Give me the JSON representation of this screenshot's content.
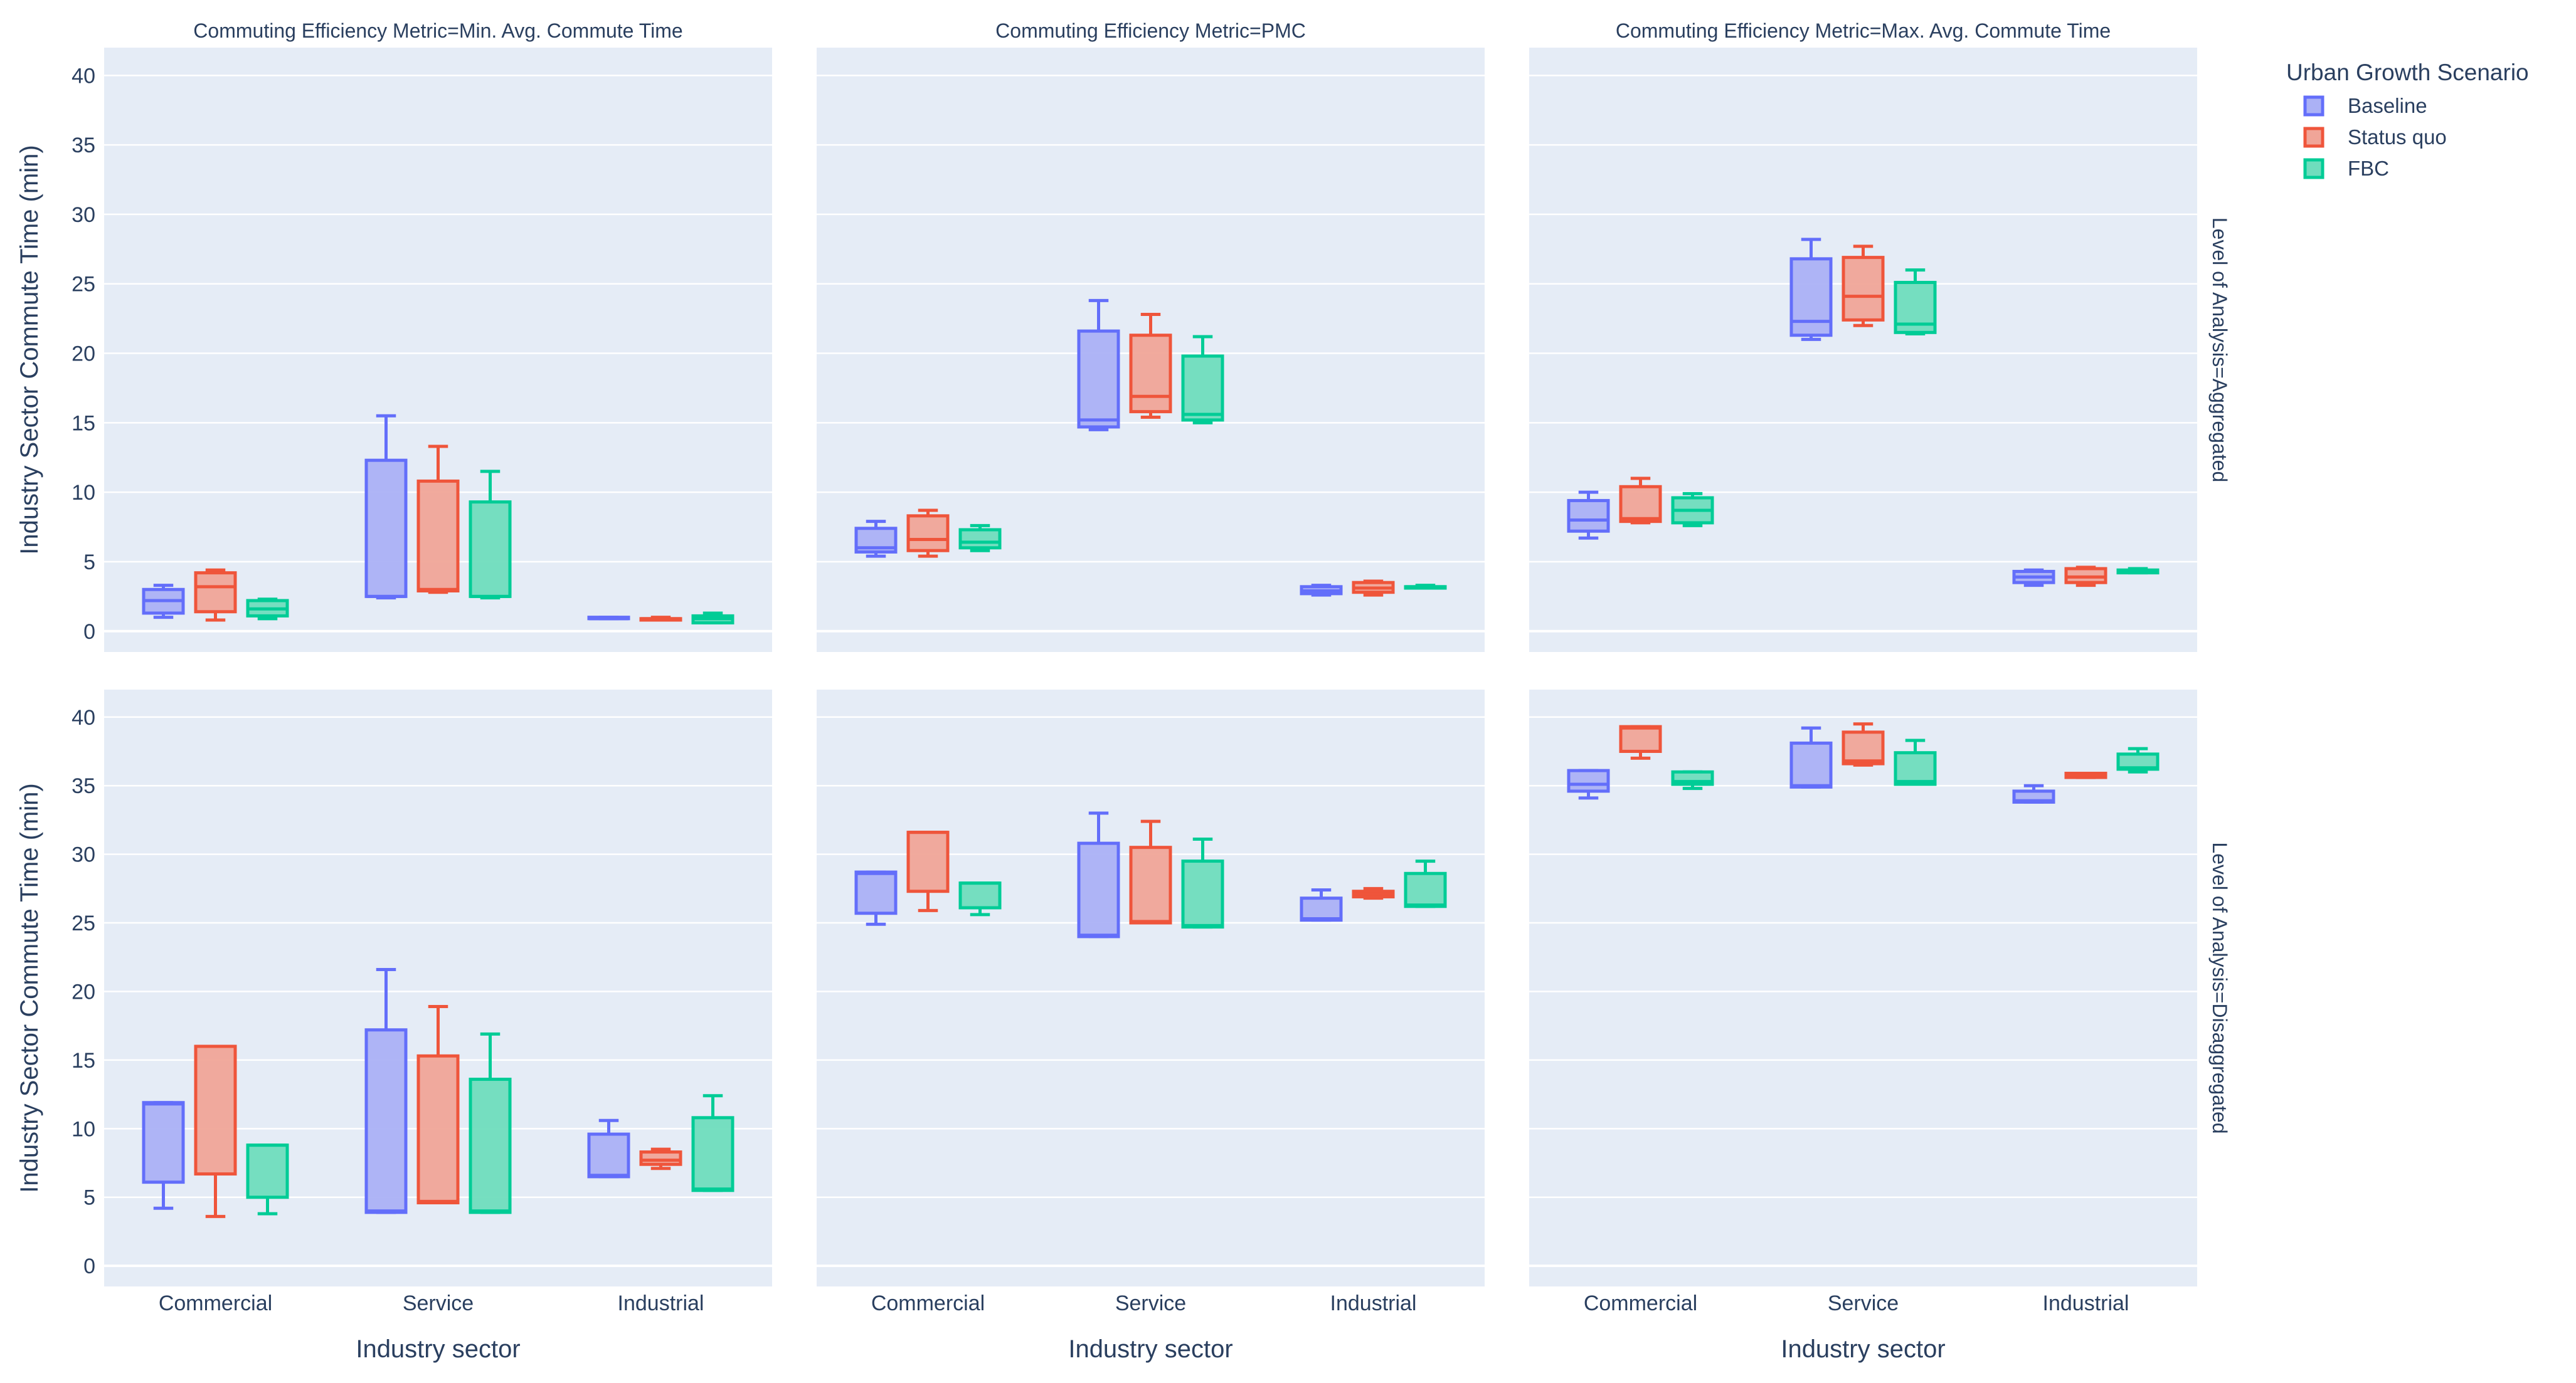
{
  "chart_data": {
    "type": "box",
    "legend_title": "Urban Growth Scenario",
    "y_axis_title": "Industry Sector Commute Time (min)",
    "x_axis_title": "Industry sector",
    "categories": [
      "Commercial",
      "Service",
      "Industrial"
    ],
    "y_ticks": [
      0,
      5,
      10,
      15,
      20,
      25,
      30,
      35,
      40
    ],
    "ylim": [
      -1.5,
      42
    ],
    "series": [
      {
        "name": "Baseline",
        "color": "#636efa",
        "fill": "#abb1f5"
      },
      {
        "name": "Status quo",
        "color": "#ef553b",
        "fill": "#f0a598"
      },
      {
        "name": "FBC",
        "color": "#00cc96",
        "fill": "#6fddbd"
      }
    ],
    "columns": [
      "Commuting Efficiency Metric=Min. Avg. Commute Time",
      "Commuting Efficiency Metric=PMC",
      "Commuting Efficiency Metric=Max. Avg. Commute Time"
    ],
    "rows": [
      "Level of Analysis=Aggregated",
      "Level of Analysis=Disaggregated"
    ],
    "boxes": [
      [
        {
          "Commercial": [
            [
              1.0,
              1.3,
              2.2,
              3.0,
              3.3
            ],
            [
              0.8,
              1.4,
              3.2,
              4.2,
              4.4
            ],
            [
              0.9,
              1.1,
              1.6,
              2.2,
              2.3
            ]
          ],
          "Service": [
            [
              2.4,
              2.5,
              2.5,
              12.3,
              15.5
            ],
            [
              2.8,
              2.9,
              3.0,
              10.8,
              13.3
            ],
            [
              2.4,
              2.5,
              2.5,
              9.3,
              11.5
            ]
          ],
          "Industrial": [
            [
              0.9,
              0.9,
              0.9,
              1.0,
              1.0
            ],
            [
              0.8,
              0.8,
              0.9,
              0.9,
              1.0
            ],
            [
              0.6,
              0.6,
              0.9,
              1.1,
              1.3
            ]
          ]
        },
        {
          "Commercial": [
            [
              5.4,
              5.7,
              6.0,
              7.4,
              7.9
            ],
            [
              5.4,
              5.8,
              6.6,
              8.3,
              8.7
            ],
            [
              5.8,
              6.0,
              6.4,
              7.3,
              7.6
            ]
          ],
          "Service": [
            [
              14.5,
              14.7,
              15.2,
              21.6,
              23.8
            ],
            [
              15.4,
              15.8,
              16.9,
              21.3,
              22.8
            ],
            [
              15.0,
              15.2,
              15.6,
              19.8,
              21.2
            ]
          ],
          "Industrial": [
            [
              2.6,
              2.7,
              2.9,
              3.2,
              3.3
            ],
            [
              2.6,
              2.8,
              3.1,
              3.5,
              3.6
            ],
            [
              3.1,
              3.1,
              3.2,
              3.2,
              3.3
            ]
          ]
        },
        {
          "Commercial": [
            [
              6.7,
              7.2,
              8.0,
              9.4,
              10.0
            ],
            [
              7.8,
              7.9,
              8.1,
              10.4,
              11.0
            ],
            [
              7.6,
              7.8,
              8.7,
              9.6,
              9.9
            ]
          ],
          "Service": [
            [
              21.0,
              21.3,
              22.3,
              26.8,
              28.2
            ],
            [
              22.0,
              22.4,
              24.1,
              26.9,
              27.7
            ],
            [
              21.4,
              21.5,
              22.1,
              25.1,
              26.0
            ]
          ],
          "Industrial": [
            [
              3.3,
              3.5,
              3.9,
              4.3,
              4.4
            ],
            [
              3.3,
              3.5,
              3.9,
              4.5,
              4.6
            ],
            [
              4.2,
              4.2,
              4.3,
              4.4,
              4.5
            ]
          ]
        }
      ],
      [
        {
          "Commercial": [
            [
              4.2,
              6.1,
              11.8,
              11.9,
              11.9
            ],
            [
              3.6,
              6.7,
              16.0,
              16.0,
              16.0
            ],
            [
              3.8,
              5.0,
              8.8,
              8.8,
              8.8
            ]
          ],
          "Service": [
            [
              3.9,
              3.9,
              4.0,
              17.2,
              21.6
            ],
            [
              4.6,
              4.6,
              4.7,
              15.3,
              18.9
            ],
            [
              3.9,
              3.9,
              4.0,
              13.6,
              16.9
            ]
          ],
          "Industrial": [
            [
              6.5,
              6.5,
              6.6,
              9.6,
              10.6
            ],
            [
              7.1,
              7.4,
              7.7,
              8.3,
              8.5
            ],
            [
              5.5,
              5.5,
              5.6,
              10.8,
              12.4
            ]
          ]
        },
        {
          "Commercial": [
            [
              24.9,
              25.7,
              28.6,
              28.7,
              28.7
            ],
            [
              25.9,
              27.3,
              31.6,
              31.6,
              31.6
            ],
            [
              25.6,
              26.1,
              27.9,
              27.9,
              27.9
            ]
          ],
          "Service": [
            [
              24.0,
              24.0,
              24.1,
              30.8,
              33.0
            ],
            [
              25.0,
              25.0,
              25.1,
              30.5,
              32.4
            ],
            [
              24.7,
              24.7,
              24.8,
              29.5,
              31.1
            ]
          ],
          "Industrial": [
            [
              25.2,
              25.2,
              25.3,
              26.8,
              27.4
            ],
            [
              26.8,
              26.9,
              27.1,
              27.3,
              27.5
            ],
            [
              26.2,
              26.2,
              26.3,
              28.6,
              29.5
            ]
          ]
        },
        {
          "Commercial": [
            [
              34.1,
              34.6,
              35.1,
              36.1,
              36.1
            ],
            [
              37.0,
              37.5,
              39.2,
              39.3,
              39.3
            ],
            [
              34.8,
              35.1,
              35.3,
              36.0,
              36.0
            ]
          ],
          "Service": [
            [
              34.9,
              34.9,
              35.0,
              38.1,
              39.2
            ],
            [
              36.5,
              36.6,
              36.8,
              38.9,
              39.5
            ],
            [
              35.1,
              35.1,
              35.3,
              37.4,
              38.3
            ]
          ],
          "Industrial": [
            [
              33.8,
              33.8,
              33.9,
              34.6,
              35.0
            ],
            [
              35.6,
              35.6,
              35.8,
              35.9,
              35.9
            ],
            [
              36.0,
              36.2,
              36.3,
              37.3,
              37.7
            ]
          ]
        }
      ]
    ]
  }
}
